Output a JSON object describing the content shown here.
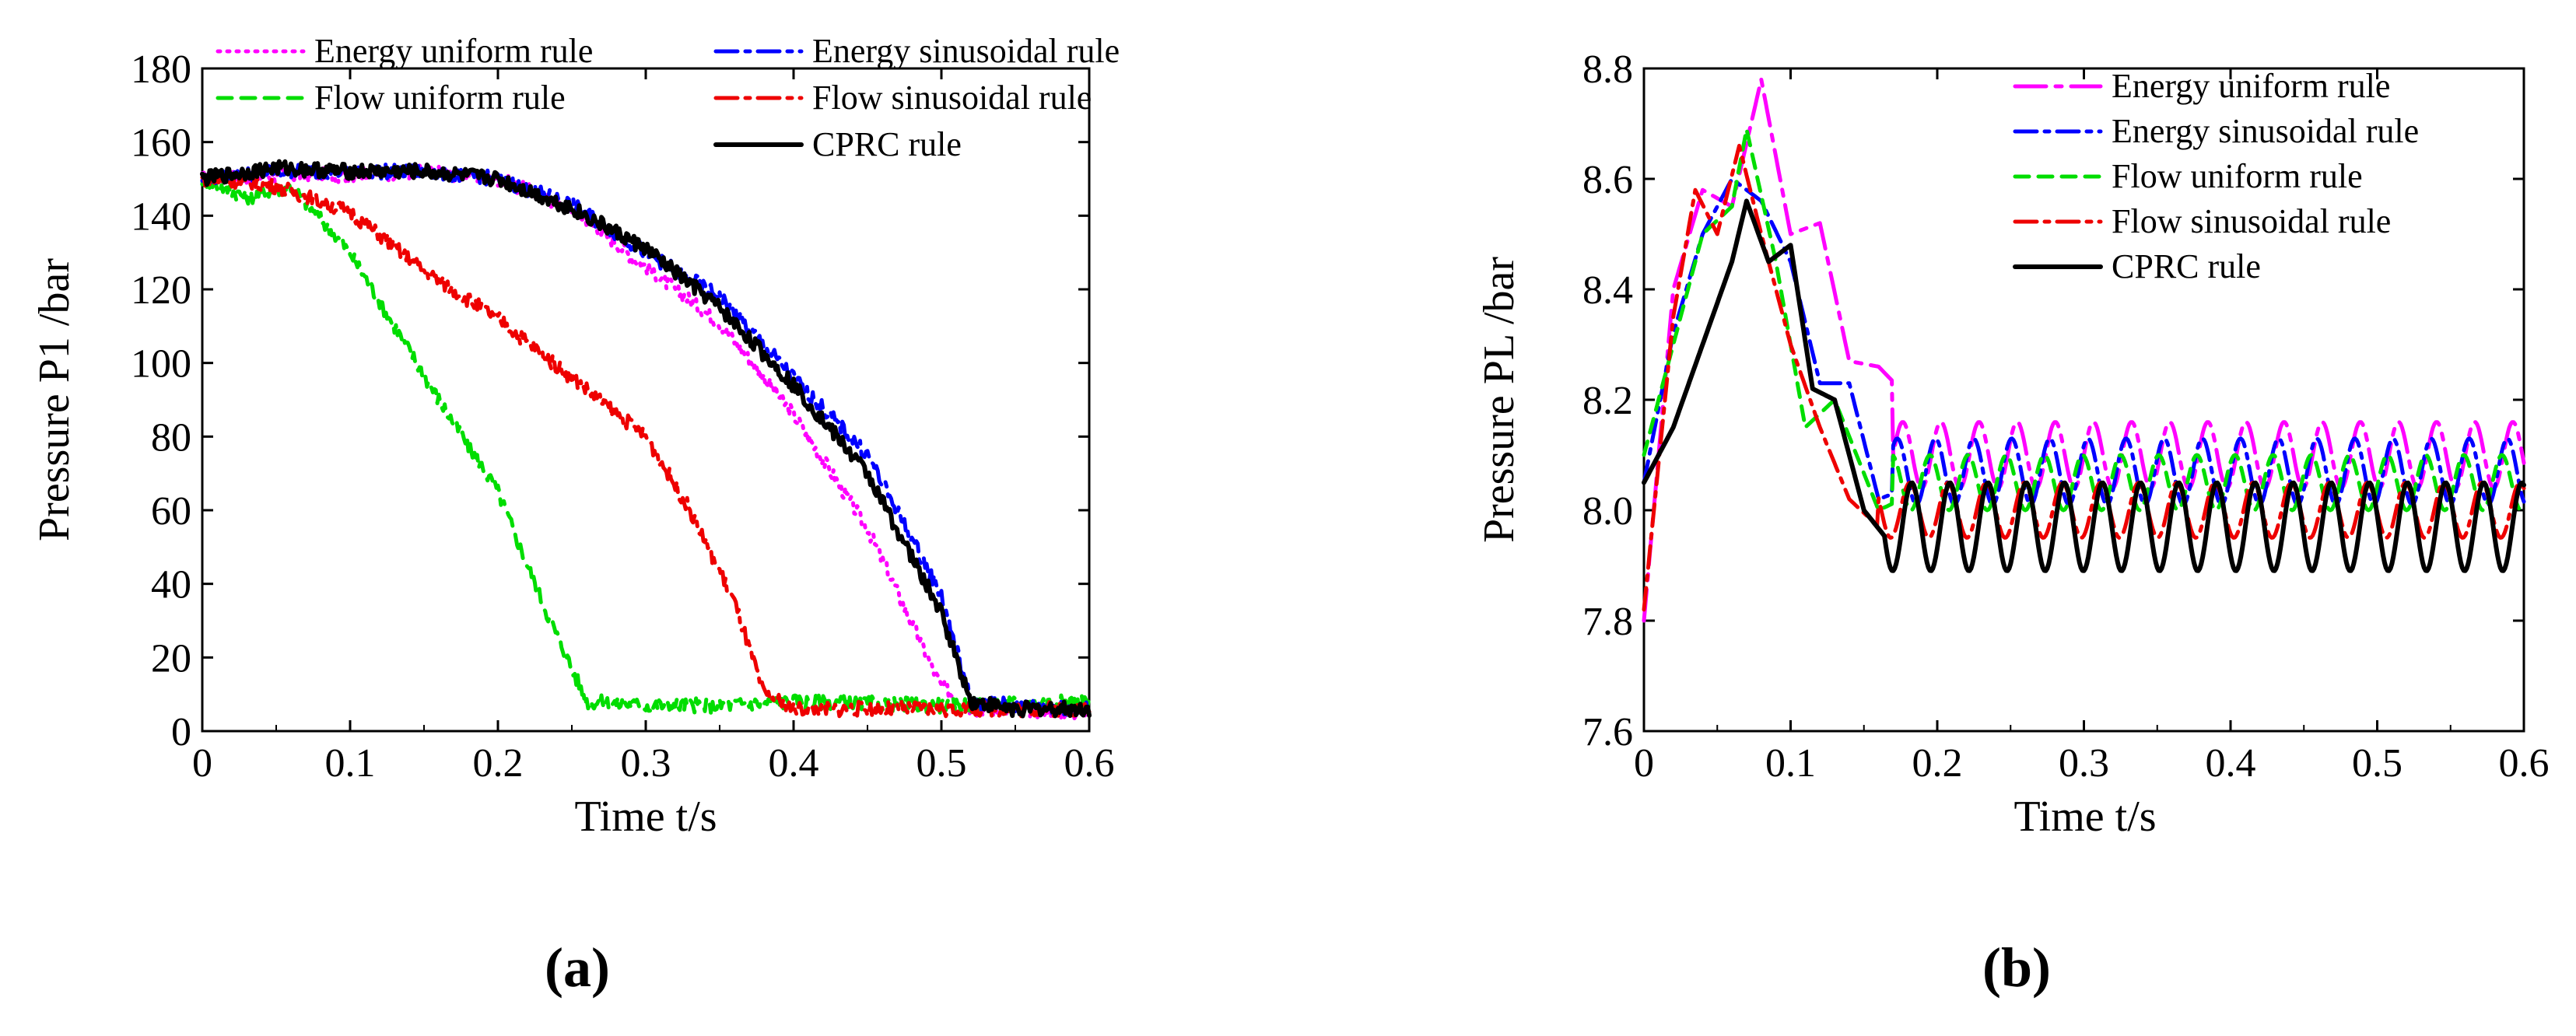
{
  "chart_data": [
    {
      "type": "line",
      "panel_label": "(a)",
      "xlabel": "Time t/s",
      "ylabel": "Pressure P1 /bar",
      "xlim": [
        0,
        0.6
      ],
      "ylim": [
        0,
        180
      ],
      "xticks": [
        0,
        0.1,
        0.2,
        0.3,
        0.4,
        0.5,
        0.6
      ],
      "xtick_labels": [
        "0",
        "0.1",
        "0.2",
        "0.3",
        "0.4",
        "0.5",
        "0.6"
      ],
      "yticks": [
        0,
        20,
        40,
        60,
        80,
        100,
        120,
        140,
        160,
        180
      ],
      "ytick_labels": [
        "0",
        "20",
        "40",
        "60",
        "80",
        "100",
        "120",
        "140",
        "160",
        "180"
      ],
      "grid": false,
      "legend_position": "top, two columns",
      "series": [
        {
          "name": "Energy uniform rule",
          "color": "#ff00ff",
          "dash": "dotted",
          "x": [
            0,
            0.05,
            0.1,
            0.15,
            0.2,
            0.25,
            0.3,
            0.35,
            0.4,
            0.45,
            0.5,
            0.52,
            0.55,
            0.6
          ],
          "y": [
            150,
            151,
            151,
            152,
            150,
            142,
            126,
            111,
            86,
            55,
            12,
            6,
            6,
            5
          ]
        },
        {
          "name": "Flow uniform rule",
          "color": "#00dd00",
          "dash": "dashed",
          "x": [
            0,
            0.03,
            0.06,
            0.1,
            0.13,
            0.16,
            0.2,
            0.23,
            0.26,
            0.3,
            0.35,
            0.4,
            0.5,
            0.6
          ],
          "y": [
            150,
            145,
            148,
            130,
            110,
            90,
            65,
            35,
            8,
            7,
            7,
            8,
            7,
            8
          ]
        },
        {
          "name": "Energy sinusoidal rule",
          "color": "#0000ff",
          "dash": "dash-dot",
          "x": [
            0,
            0.05,
            0.1,
            0.15,
            0.2,
            0.25,
            0.3,
            0.35,
            0.4,
            0.45,
            0.5,
            0.52,
            0.55,
            0.6
          ],
          "y": [
            150,
            152,
            152,
            152,
            150,
            143,
            130,
            118,
            96,
            75,
            37,
            8,
            7,
            6
          ]
        },
        {
          "name": "Flow sinusoidal rule",
          "color": "#ee0000",
          "dash": "dash-dot",
          "x": [
            0,
            0.05,
            0.1,
            0.15,
            0.2,
            0.25,
            0.3,
            0.33,
            0.36,
            0.38,
            0.4,
            0.5,
            0.6
          ],
          "y": [
            150,
            148,
            141,
            125,
            112,
            96,
            80,
            60,
            35,
            10,
            6,
            6,
            6
          ]
        },
        {
          "name": "CPRC rule",
          "color": "#000000",
          "dash": "solid",
          "x": [
            0,
            0.05,
            0.1,
            0.15,
            0.2,
            0.25,
            0.3,
            0.35,
            0.4,
            0.45,
            0.5,
            0.52,
            0.55,
            0.6
          ],
          "y": [
            150,
            153,
            152,
            152,
            150,
            142,
            131,
            115,
            94,
            70,
            32,
            8,
            6,
            6
          ]
        }
      ]
    },
    {
      "type": "line",
      "panel_label": "(b)",
      "xlabel": "Time t/s",
      "ylabel": "Pressure PL /bar",
      "xlim": [
        0,
        0.6
      ],
      "ylim": [
        7.6,
        8.8
      ],
      "xticks": [
        0,
        0.1,
        0.2,
        0.3,
        0.4,
        0.5,
        0.6
      ],
      "xtick_labels": [
        "0",
        "0.1",
        "0.2",
        "0.3",
        "0.4",
        "0.5",
        "0.6"
      ],
      "yticks": [
        7.6,
        7.8,
        8.0,
        8.2,
        8.4,
        8.6,
        8.8
      ],
      "ytick_labels": [
        "7.6",
        "7.8",
        "8.0",
        "8.2",
        "8.4",
        "8.6",
        "8.8"
      ],
      "grid": false,
      "legend_position": "top-right",
      "series": [
        {
          "name": "Energy uniform rule",
          "color": "#ff00ff",
          "dash": "long-dash-dot",
          "x": [
            0,
            0.02,
            0.04,
            0.06,
            0.08,
            0.1,
            0.12,
            0.14,
            0.16,
            0.2,
            0.25,
            0.3,
            0.35,
            0.4,
            0.45,
            0.5,
            0.55,
            0.6
          ],
          "y": [
            7.8,
            8.4,
            8.58,
            8.55,
            8.78,
            8.5,
            8.52,
            8.27,
            8.26,
            8.15,
            8.12,
            8.15,
            8.1,
            8.16,
            8.1,
            8.15,
            8.12,
            8.1
          ],
          "osc": {
            "start": 0.17,
            "mean": 8.1,
            "amp": 0.06,
            "period": 0.026
          }
        },
        {
          "name": "Energy sinusoidal rule",
          "color": "#0000ff",
          "dash": "dash-dot",
          "x": [
            0,
            0.02,
            0.04,
            0.06,
            0.08,
            0.1,
            0.12,
            0.14,
            0.16,
            0.2,
            0.3,
            0.4,
            0.5,
            0.6
          ],
          "y": [
            8.05,
            8.32,
            8.5,
            8.6,
            8.56,
            8.45,
            8.23,
            8.23,
            8.02,
            8.06,
            8.08,
            8.08,
            8.06,
            8.06
          ],
          "osc": {
            "start": 0.17,
            "mean": 8.07,
            "amp": 0.06,
            "period": 0.026
          }
        },
        {
          "name": "Flow uniform rule",
          "color": "#00dd00",
          "dash": "dashed",
          "x": [
            0,
            0.02,
            0.04,
            0.06,
            0.07,
            0.09,
            0.11,
            0.13,
            0.16,
            0.2,
            0.3,
            0.4,
            0.5,
            0.6
          ],
          "y": [
            8.1,
            8.3,
            8.5,
            8.55,
            8.69,
            8.45,
            8.15,
            8.2,
            8.0,
            8.05,
            8.06,
            8.06,
            8.05,
            8.05
          ],
          "osc": {
            "start": 0.17,
            "mean": 8.05,
            "amp": 0.05,
            "period": 0.026
          }
        },
        {
          "name": "Flow sinusoidal rule",
          "color": "#ee0000",
          "dash": "dash-dot",
          "x": [
            0,
            0.02,
            0.035,
            0.05,
            0.065,
            0.08,
            0.1,
            0.12,
            0.14,
            0.16,
            0.2,
            0.3,
            0.4,
            0.5,
            0.6
          ],
          "y": [
            7.82,
            8.35,
            8.58,
            8.5,
            8.66,
            8.5,
            8.3,
            8.15,
            8.02,
            7.97,
            7.97,
            8.0,
            8.01,
            8.01,
            8.02
          ],
          "osc": {
            "start": 0.16,
            "mean": 8.0,
            "amp": 0.05,
            "period": 0.026
          }
        },
        {
          "name": "CPRC rule",
          "color": "#000000",
          "dash": "solid",
          "x": [
            0,
            0.02,
            0.04,
            0.06,
            0.07,
            0.085,
            0.1,
            0.115,
            0.13,
            0.15,
            0.165,
            0.2,
            0.3,
            0.4,
            0.5,
            0.6
          ],
          "y": [
            8.05,
            8.15,
            8.3,
            8.45,
            8.56,
            8.45,
            8.48,
            8.22,
            8.2,
            8.0,
            7.95,
            7.96,
            7.97,
            7.98,
            7.96,
            7.97
          ],
          "osc": {
            "start": 0.165,
            "mean": 7.97,
            "amp": 0.08,
            "period": 0.026
          }
        }
      ]
    }
  ]
}
